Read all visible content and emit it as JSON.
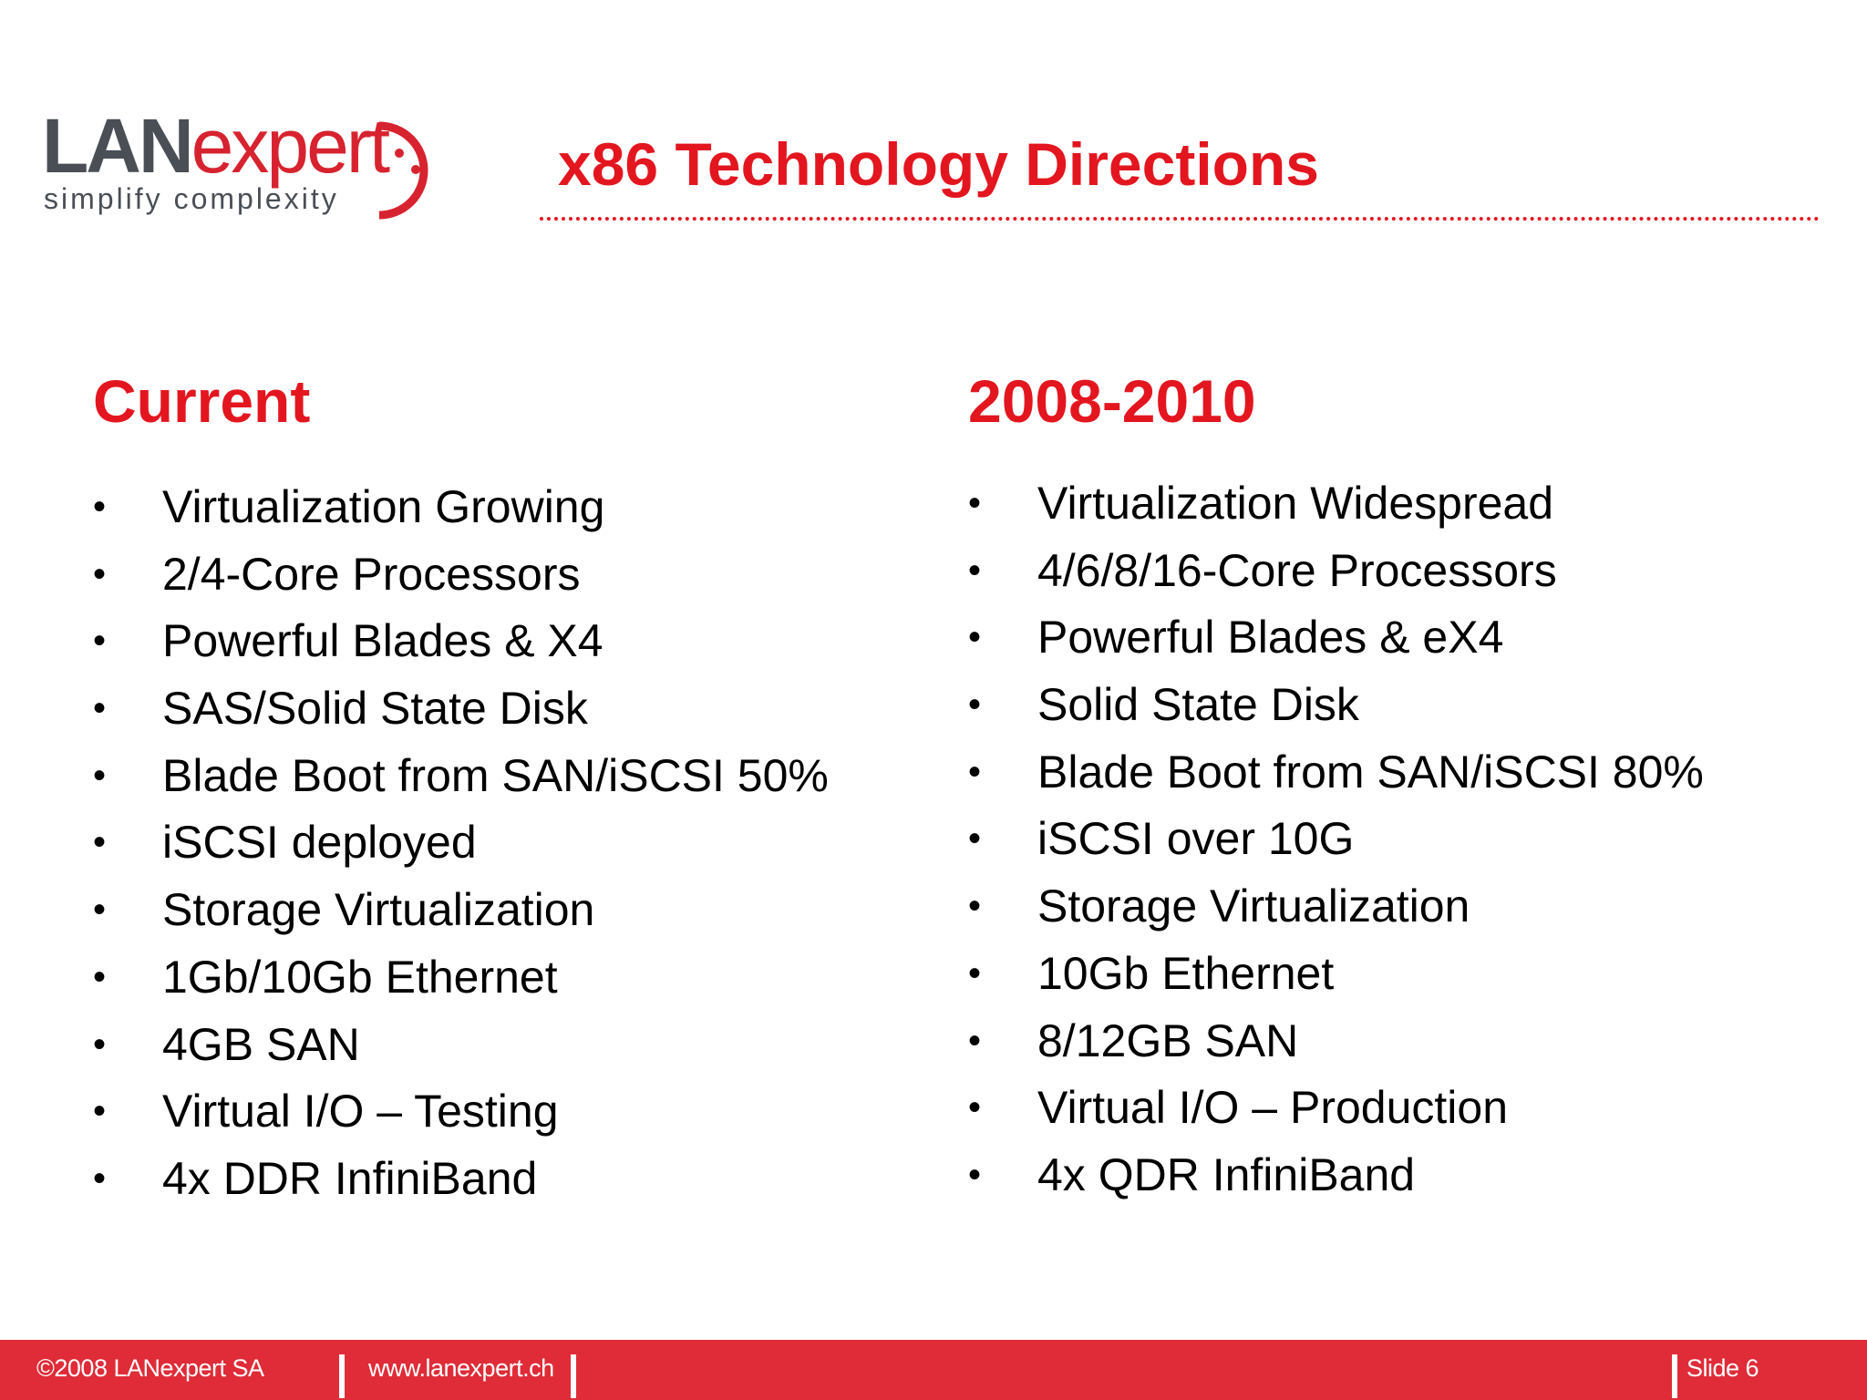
{
  "logo": {
    "brand_part1": "LAN",
    "brand_part2": "expert",
    "tagline": "simplify complexity"
  },
  "slide": {
    "title": "x86 Technology Directions"
  },
  "columns": {
    "left": {
      "heading": "Current",
      "items": [
        "Virtualization Growing",
        "2/4-Core Processors",
        "Powerful Blades & X4",
        "SAS/Solid State Disk",
        "Blade Boot from SAN/iSCSI 50%",
        "iSCSI deployed",
        "Storage Virtualization",
        "1Gb/10Gb Ethernet",
        "4GB SAN",
        "Virtual I/O – Testing",
        "4x DDR InfiniBand"
      ]
    },
    "right": {
      "heading": "2008-2010",
      "items": [
        "Virtualization Widespread",
        "4/6/8/16-Core Processors",
        "Powerful Blades & eX4",
        "Solid State Disk",
        "Blade Boot from SAN/iSCSI 80%",
        "iSCSI over 10G",
        "Storage Virtualization",
        "10Gb Ethernet",
        "8/12GB SAN",
        "Virtual I/O – Production",
        "4x QDR InfiniBand"
      ]
    }
  },
  "footer": {
    "copyright": "©2008 LANexpert SA",
    "url": "www.lanexpert.ch",
    "slide_number": "Slide 6"
  },
  "colors": {
    "accent_red": "#e3161f",
    "footer_red": "#df2c38",
    "logo_gray": "#4a4f56"
  }
}
